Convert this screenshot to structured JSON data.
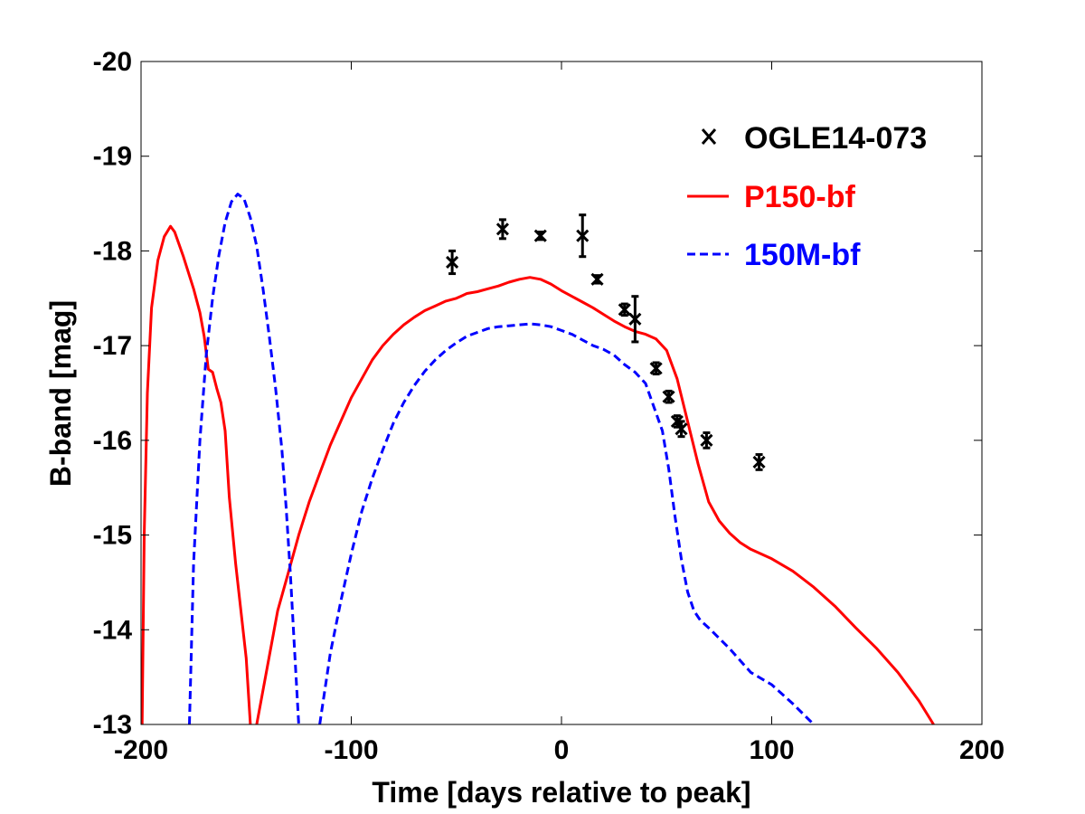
{
  "chart_data": {
    "type": "line",
    "title": "",
    "xlabel": "Time [days relative to peak]",
    "ylabel": "B-band [mag]",
    "xlim": [
      -200,
      200
    ],
    "ylim": [
      -13,
      -20
    ],
    "y_inverted": true,
    "xticks": [
      -200,
      -100,
      0,
      100,
      200
    ],
    "yticks": [
      -13,
      -14,
      -15,
      -16,
      -17,
      -18,
      -19,
      -20
    ],
    "xtick_labels": [
      "-200",
      "-100",
      "0",
      "100",
      "200"
    ],
    "ytick_labels": [
      "-13",
      "-14",
      "-15",
      "-16",
      "-17",
      "-18",
      "-19",
      "-20"
    ],
    "grid": false,
    "legend_position": "top-right",
    "legend": [
      {
        "label": "OGLE14-073",
        "style": "marker-x",
        "color": "#000000"
      },
      {
        "label": "P150-bf",
        "style": "solid",
        "color": "#ff0000"
      },
      {
        "label": "150M-bf",
        "style": "dashed",
        "color": "#0000ff"
      }
    ],
    "series": [
      {
        "name": "P150-bf",
        "color": "#ff0000",
        "style": "solid",
        "points": [
          [
            -199.5,
            -13.0
          ],
          [
            -198.5,
            -15.0
          ],
          [
            -197,
            -16.5
          ],
          [
            -195,
            -17.4
          ],
          [
            -192,
            -17.9
          ],
          [
            -189,
            -18.15
          ],
          [
            -186,
            -18.26
          ],
          [
            -184,
            -18.2
          ],
          [
            -180,
            -17.95
          ],
          [
            -175,
            -17.6
          ],
          [
            -172,
            -17.35
          ],
          [
            -170,
            -17.1
          ],
          [
            -168,
            -16.75
          ],
          [
            -166,
            -16.72
          ],
          [
            -164,
            -16.55
          ],
          [
            -162,
            -16.4
          ],
          [
            -160,
            -16.1
          ],
          [
            -158,
            -15.4
          ],
          [
            -155,
            -14.7
          ],
          [
            -150,
            -13.7
          ],
          [
            -148,
            -13.0
          ]
        ]
      },
      {
        "name": "P150-bf",
        "color": "#ff0000",
        "style": "solid",
        "points": [
          [
            -145,
            -13.0
          ],
          [
            -140,
            -13.6
          ],
          [
            -135,
            -14.2
          ],
          [
            -130,
            -14.6
          ],
          [
            -125,
            -15.0
          ],
          [
            -120,
            -15.35
          ],
          [
            -115,
            -15.65
          ],
          [
            -110,
            -15.95
          ],
          [
            -105,
            -16.2
          ],
          [
            -100,
            -16.45
          ],
          [
            -95,
            -16.65
          ],
          [
            -90,
            -16.85
          ],
          [
            -85,
            -17.0
          ],
          [
            -80,
            -17.12
          ],
          [
            -75,
            -17.22
          ],
          [
            -70,
            -17.3
          ],
          [
            -65,
            -17.37
          ],
          [
            -60,
            -17.42
          ],
          [
            -55,
            -17.47
          ],
          [
            -50,
            -17.5
          ],
          [
            -45,
            -17.55
          ],
          [
            -40,
            -17.57
          ],
          [
            -35,
            -17.6
          ],
          [
            -30,
            -17.63
          ],
          [
            -25,
            -17.67
          ],
          [
            -20,
            -17.7
          ],
          [
            -15,
            -17.72
          ],
          [
            -10,
            -17.7
          ],
          [
            -5,
            -17.65
          ],
          [
            0,
            -17.58
          ],
          [
            5,
            -17.52
          ],
          [
            10,
            -17.46
          ],
          [
            15,
            -17.4
          ],
          [
            20,
            -17.33
          ],
          [
            25,
            -17.26
          ],
          [
            30,
            -17.2
          ],
          [
            35,
            -17.15
          ],
          [
            40,
            -17.12
          ],
          [
            45,
            -17.07
          ],
          [
            50,
            -16.95
          ],
          [
            55,
            -16.65
          ],
          [
            60,
            -16.2
          ],
          [
            65,
            -15.75
          ],
          [
            70,
            -15.35
          ],
          [
            75,
            -15.15
          ],
          [
            80,
            -15.02
          ],
          [
            85,
            -14.92
          ],
          [
            90,
            -14.85
          ],
          [
            95,
            -14.8
          ],
          [
            100,
            -14.75
          ],
          [
            110,
            -14.62
          ],
          [
            120,
            -14.45
          ],
          [
            130,
            -14.25
          ],
          [
            140,
            -14.02
          ],
          [
            150,
            -13.8
          ],
          [
            160,
            -13.55
          ],
          [
            170,
            -13.25
          ],
          [
            177,
            -13.0
          ]
        ]
      },
      {
        "name": "150M-bf",
        "color": "#0000ff",
        "style": "dashed",
        "points": [
          [
            -177,
            -13.0
          ],
          [
            -175,
            -14.7
          ],
          [
            -172,
            -16.0
          ],
          [
            -169,
            -16.9
          ],
          [
            -166,
            -17.5
          ],
          [
            -163,
            -17.95
          ],
          [
            -160,
            -18.3
          ],
          [
            -157,
            -18.52
          ],
          [
            -154,
            -18.6
          ],
          [
            -151,
            -18.55
          ],
          [
            -148,
            -18.35
          ],
          [
            -145,
            -18.05
          ],
          [
            -142,
            -17.6
          ],
          [
            -139,
            -17.1
          ],
          [
            -136,
            -16.55
          ],
          [
            -133,
            -15.9
          ],
          [
            -131,
            -15.3
          ],
          [
            -129,
            -14.6
          ],
          [
            -127,
            -13.8
          ],
          [
            -125,
            -13.0
          ]
        ]
      },
      {
        "name": "150M-bf",
        "color": "#0000ff",
        "style": "dashed",
        "points": [
          [
            -115,
            -13.0
          ],
          [
            -110,
            -13.75
          ],
          [
            -105,
            -14.3
          ],
          [
            -100,
            -14.8
          ],
          [
            -95,
            -15.25
          ],
          [
            -90,
            -15.6
          ],
          [
            -85,
            -15.9
          ],
          [
            -80,
            -16.18
          ],
          [
            -75,
            -16.4
          ],
          [
            -70,
            -16.58
          ],
          [
            -65,
            -16.73
          ],
          [
            -60,
            -16.85
          ],
          [
            -55,
            -16.95
          ],
          [
            -50,
            -17.03
          ],
          [
            -45,
            -17.1
          ],
          [
            -40,
            -17.14
          ],
          [
            -35,
            -17.18
          ],
          [
            -30,
            -17.2
          ],
          [
            -25,
            -17.21
          ],
          [
            -20,
            -17.22
          ],
          [
            -15,
            -17.23
          ],
          [
            -10,
            -17.22
          ],
          [
            -5,
            -17.2
          ],
          [
            0,
            -17.16
          ],
          [
            5,
            -17.12
          ],
          [
            10,
            -17.06
          ],
          [
            15,
            -17.0
          ],
          [
            20,
            -16.96
          ],
          [
            25,
            -16.9
          ],
          [
            30,
            -16.8
          ],
          [
            35,
            -16.72
          ],
          [
            40,
            -16.6
          ],
          [
            44,
            -16.35
          ],
          [
            48,
            -16.1
          ],
          [
            51,
            -15.7
          ],
          [
            54,
            -15.2
          ],
          [
            57,
            -14.75
          ],
          [
            60,
            -14.4
          ],
          [
            63,
            -14.2
          ],
          [
            66,
            -14.1
          ],
          [
            70,
            -14.02
          ],
          [
            80,
            -13.8
          ],
          [
            90,
            -13.55
          ],
          [
            100,
            -13.42
          ],
          [
            110,
            -13.22
          ],
          [
            120,
            -13.0
          ]
        ]
      },
      {
        "name": "OGLE14-073",
        "color": "#000000",
        "style": "marker-x",
        "points": [
          {
            "x": -52,
            "y": -17.88,
            "err": 0.12
          },
          {
            "x": -28,
            "y": -18.23,
            "err": 0.1
          },
          {
            "x": -10,
            "y": -18.16,
            "err": 0.04
          },
          {
            "x": 10,
            "y": -18.16,
            "err": 0.22
          },
          {
            "x": 17,
            "y": -17.7,
            "err": 0.04
          },
          {
            "x": 30,
            "y": -17.38,
            "err": 0.06
          },
          {
            "x": 35,
            "y": -17.28,
            "err": 0.24
          },
          {
            "x": 45,
            "y": -16.76,
            "err": 0.06
          },
          {
            "x": 51,
            "y": -16.46,
            "err": 0.06
          },
          {
            "x": 55,
            "y": -16.2,
            "err": 0.06
          },
          {
            "x": 57,
            "y": -16.12,
            "err": 0.08
          },
          {
            "x": 69,
            "y": -16.0,
            "err": 0.08
          },
          {
            "x": 94,
            "y": -15.77,
            "err": 0.08
          }
        ]
      }
    ]
  }
}
